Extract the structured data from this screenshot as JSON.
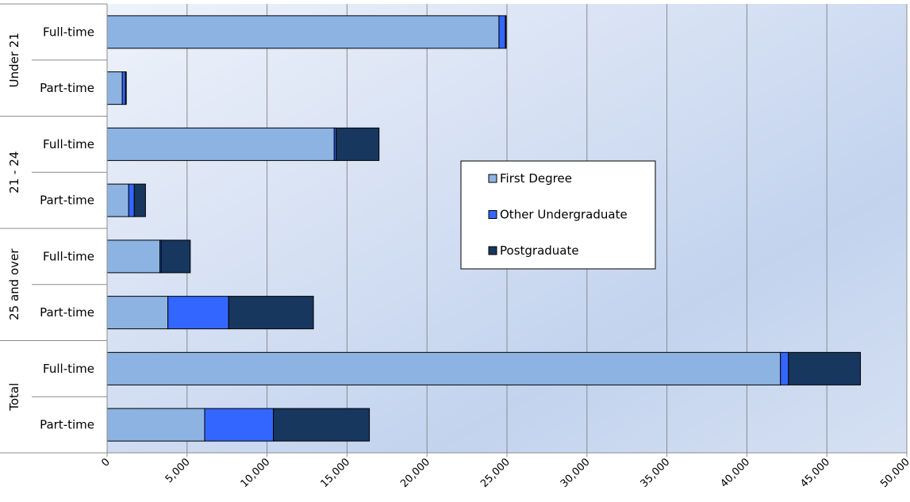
{
  "chart_data": {
    "type": "bar",
    "orientation": "horizontal",
    "stacked": true,
    "groups": [
      {
        "label": "Under 21",
        "categories": [
          "Full-time",
          "Part-time"
        ]
      },
      {
        "label": "21 - 24",
        "categories": [
          "Full-time",
          "Part-time"
        ]
      },
      {
        "label": "25 and over",
        "categories": [
          "Full-time",
          "Part-time"
        ]
      },
      {
        "label": "Total",
        "categories": [
          "Full-time",
          "Part-time"
        ]
      }
    ],
    "series": [
      {
        "name": "First Degree",
        "color": "#8db3e2",
        "values": [
          24500,
          950,
          14200,
          1350,
          3300,
          3800,
          42100,
          6100
        ]
      },
      {
        "name": "Other Undergraduate",
        "color": "#3366ff",
        "values": [
          400,
          200,
          120,
          350,
          80,
          3800,
          500,
          4300
        ]
      },
      {
        "name": "Postgraduate",
        "color": "#17375e",
        "values": [
          50,
          50,
          2680,
          700,
          1820,
          5300,
          4500,
          6000
        ]
      }
    ],
    "xlim": [
      0,
      50000
    ],
    "xticks": [
      "0",
      "5,000",
      "10,000",
      "15,000",
      "20,000",
      "25,000",
      "30,000",
      "35,000",
      "40,000",
      "45,000",
      "50,000"
    ],
    "grid": true,
    "legend_position": "center-right"
  }
}
